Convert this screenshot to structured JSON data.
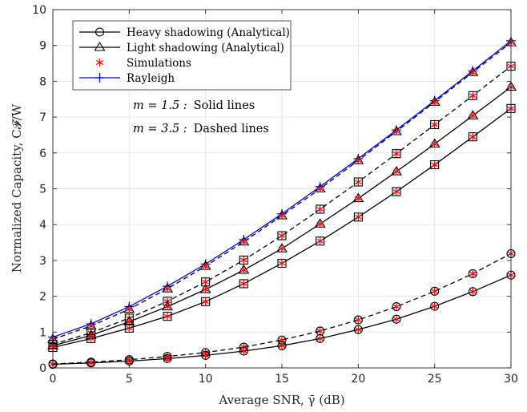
{
  "chart_data": {
    "type": "line",
    "xlabel": "Average SNR, γ̄ (dB)",
    "ylabel": "Normalized Capacity, C𝓕/W",
    "xlim": [
      0,
      30
    ],
    "ylim": [
      0,
      10
    ],
    "xticks": [
      "0",
      "5",
      "10",
      "15",
      "20",
      "25",
      "30"
    ],
    "yticks": [
      "0",
      "1",
      "2",
      "3",
      "4",
      "5",
      "6",
      "7",
      "8",
      "9",
      "10"
    ],
    "grid": true,
    "legend_position": "top-left",
    "x": [
      0,
      2.5,
      5,
      7.5,
      10,
      12.5,
      15,
      17.5,
      20,
      22.5,
      25,
      27.5,
      30
    ],
    "legend": [
      {
        "label": "Heavy shadowing (Analytical)",
        "marker": "circle",
        "color": "#000000"
      },
      {
        "label": "Light shadowing (Analytical)",
        "marker": "triangle",
        "color": "#000000"
      },
      {
        "label": "Simulations",
        "marker": "asterisk",
        "color": "#ff0000"
      },
      {
        "label": "Rayleigh",
        "marker": "plus",
        "color": "#0000ff"
      }
    ],
    "annotations": [
      {
        "prefix": "m = 1.5 :",
        "text": "Solid lines"
      },
      {
        "prefix": "m = 3.5 :",
        "text": "Dashed lines"
      }
    ],
    "series": [
      {
        "name": "Rayleigh",
        "color": "#0000ff",
        "dash": false,
        "marker": "plus",
        "values": [
          0.86,
          1.23,
          1.71,
          2.28,
          2.9,
          3.58,
          4.3,
          5.06,
          5.84,
          6.64,
          7.46,
          8.29,
          9.13
        ]
      },
      {
        "color": "#000000",
        "dash": true,
        "marker": "triangle",
        "values": [
          0.8,
          1.17,
          1.64,
          2.21,
          2.84,
          3.52,
          4.25,
          5.0,
          5.79,
          6.6,
          7.42,
          8.25,
          9.08
        ]
      },
      {
        "color": "#000000",
        "dash": true,
        "marker": "square",
        "values": [
          0.66,
          0.98,
          1.39,
          1.86,
          2.4,
          3.01,
          3.69,
          4.43,
          5.19,
          5.98,
          6.79,
          7.6,
          8.42
        ]
      },
      {
        "color": "#000000",
        "dash": false,
        "marker": "triangle",
        "values": [
          0.62,
          0.91,
          1.29,
          1.71,
          2.19,
          2.73,
          3.33,
          4.02,
          4.73,
          5.48,
          6.25,
          7.04,
          7.84
        ]
      },
      {
        "color": "#000000",
        "dash": false,
        "marker": "square",
        "values": [
          0.57,
          0.82,
          1.11,
          1.44,
          1.85,
          2.35,
          2.92,
          3.54,
          4.21,
          4.92,
          5.67,
          6.45,
          7.24
        ]
      },
      {
        "color": "#000000",
        "dash": true,
        "marker": "circle",
        "values": [
          0.11,
          0.16,
          0.23,
          0.32,
          0.43,
          0.58,
          0.78,
          1.03,
          1.34,
          1.71,
          2.14,
          2.63,
          3.19
        ]
      },
      {
        "color": "#000000",
        "dash": false,
        "marker": "circle",
        "values": [
          0.1,
          0.14,
          0.19,
          0.26,
          0.35,
          0.47,
          0.62,
          0.82,
          1.07,
          1.36,
          1.72,
          2.13,
          2.59
        ]
      }
    ]
  }
}
